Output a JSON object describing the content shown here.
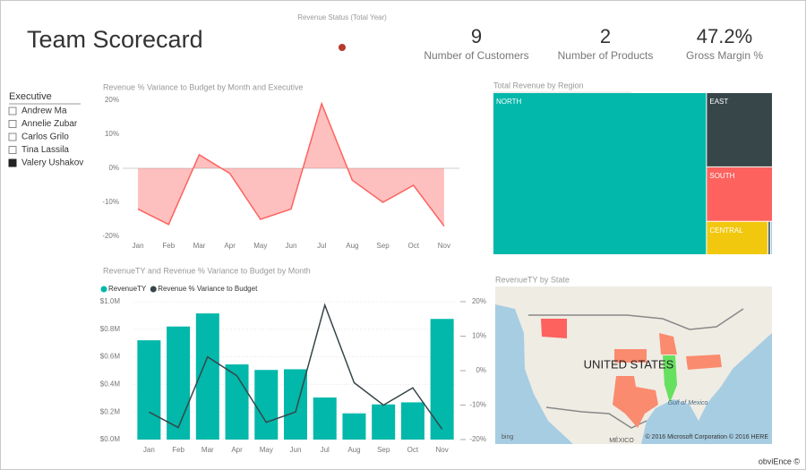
{
  "header": {
    "title": "Team Scorecard"
  },
  "status": {
    "label": "Revenue Status (Total Year)"
  },
  "kpis": [
    {
      "value": 9,
      "label": "Number of Customers"
    },
    {
      "value": 2,
      "label": "Number of Products"
    },
    {
      "value": 47.2,
      "value_label": "47.2%",
      "label": "Gross Margin %"
    }
  ],
  "slicer": {
    "title": "Executive",
    "items": [
      "Andrew Ma",
      "Annelie Zubar",
      "Carlos Grilo",
      "Tina Lassila",
      "Valery Ushakov"
    ],
    "selected": [
      false,
      false,
      false,
      false,
      true
    ]
  },
  "chart_data": [
    {
      "type": "area",
      "title": "Revenue % Variance to Budget by Month and Executive",
      "categories": [
        "Jan",
        "Feb",
        "Mar",
        "Apr",
        "May",
        "Jun",
        "Jul",
        "Aug",
        "Sep",
        "Oct",
        "Nov"
      ],
      "values": [
        -12,
        -16.5,
        4,
        -1.5,
        -15,
        -12,
        19,
        -3.5,
        -10,
        -5,
        -17
      ],
      "color": "#FD625E",
      "grid": false,
      "ylim": [
        -20,
        20
      ],
      "yticks": [
        {
          "value": 20,
          "label": "20%"
        },
        {
          "value": 10,
          "label": "10%"
        },
        {
          "value": 0,
          "label": "0%"
        },
        {
          "value": -10,
          "label": "-10%"
        },
        {
          "value": -20,
          "label": "-20%"
        }
      ]
    },
    {
      "type": "combo",
      "title": "RevenueTY and Revenue % Variance to Budget by Month",
      "categories": [
        "Jan",
        "Feb",
        "Mar",
        "Apr",
        "May",
        "Jun",
        "Jul",
        "Aug",
        "Sep",
        "Oct",
        "Nov"
      ],
      "series": [
        {
          "name": "RevenueTY",
          "type": "bar",
          "color": "#01B8AA",
          "values": [
            0.72,
            0.82,
            0.915,
            0.545,
            0.505,
            0.51,
            0.305,
            0.19,
            0.255,
            0.27,
            0.875
          ]
        },
        {
          "name": "Revenue % Variance to Budget",
          "type": "line",
          "axis": "y2",
          "color": "#374649",
          "values": [
            -12,
            -16.5,
            4,
            -1.5,
            -15,
            -12,
            19,
            -3.5,
            -10,
            -5,
            -17
          ]
        }
      ],
      "grid": true,
      "ylim": [
        0,
        1.0
      ],
      "yticks": [
        {
          "value": 1.0,
          "label": "$1.0M"
        },
        {
          "value": 0.8,
          "label": "$0.8M"
        },
        {
          "value": 0.6,
          "label": "$0.6M"
        },
        {
          "value": 0.4,
          "label": "$0.4M"
        },
        {
          "value": 0.2,
          "label": "$0.2M"
        },
        {
          "value": 0,
          "label": "$0.0M"
        }
      ],
      "y2lim": [
        -20,
        20
      ],
      "y2ticks": [
        {
          "value": 20,
          "label": "20%"
        },
        {
          "value": 10,
          "label": "10%"
        },
        {
          "value": 0,
          "label": "0%"
        },
        {
          "value": -10,
          "label": "-10%"
        },
        {
          "value": -20,
          "label": "-20%"
        }
      ]
    },
    {
      "type": "treemap",
      "title": "Total Revenue by Region",
      "categories": [
        "NORTH",
        "EAST",
        "SOUTH",
        "CENTRAL",
        null,
        null
      ],
      "values": [
        76.3,
        10.9,
        8.0,
        4.5,
        0.2,
        0.07
      ],
      "colors": [
        "#01B8AA",
        "#374649",
        "#FD625E",
        "#F2C80F",
        "#5F6B6D",
        "#8AD4EB"
      ]
    },
    {
      "type": "map",
      "title": "RevenueTY by State",
      "label": "UNITED STATES",
      "gulf": "Gulf of Mexico",
      "country": "MÉXICO",
      "credit": "© 2016 Microsoft Corporation   © 2016 HERE",
      "provider": "bing"
    }
  ],
  "footer": "obviEnce ©"
}
